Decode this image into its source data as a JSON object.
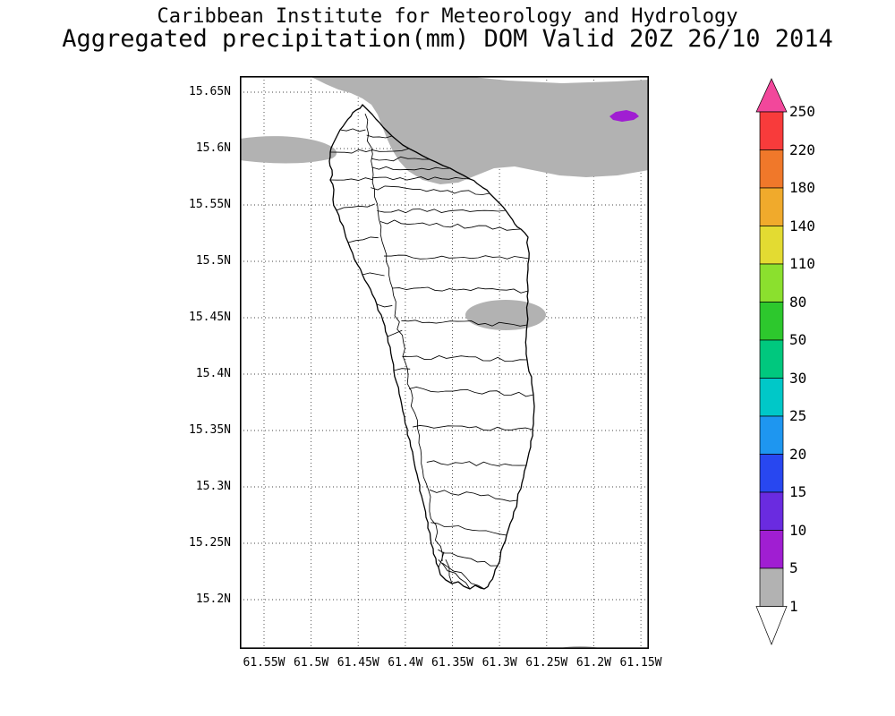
{
  "header": {
    "line1": "Caribbean Institute for Meteorology and Hydrology",
    "line2": "Aggregated precipitation(mm) DOM Valid 20Z 26/10 2014"
  },
  "axes": {
    "lat_labels": [
      "15.65N",
      "15.6N",
      "15.55N",
      "15.5N",
      "15.45N",
      "15.4N",
      "15.35N",
      "15.3N",
      "15.25N",
      "15.2N"
    ],
    "lon_labels": [
      "61.55W",
      "61.5W",
      "61.45W",
      "61.4W",
      "61.35W",
      "61.3W",
      "61.25W",
      "61.2W",
      "61.15W"
    ]
  },
  "colorbar": {
    "labels_top_to_bottom": [
      "250",
      "220",
      "180",
      "140",
      "110",
      "80",
      "50",
      "30",
      "25",
      "20",
      "15",
      "10",
      "5",
      "1"
    ],
    "segment_colors_top_to_bottom": [
      "#f83b3b",
      "#f0782a",
      "#f0aa2c",
      "#e3db32",
      "#8be02e",
      "#2dc82d",
      "#00c87e",
      "#00c8c8",
      "#1e96f0",
      "#2847f0",
      "#6a2be0",
      "#a01ed2",
      "#b2b2b2"
    ],
    "arrow_top_color": "#f2479b",
    "arrow_bottom_color": "#ffffff"
  },
  "map": {
    "shading_colors": {
      "rain_1_to_5mm": "#b2b2b2",
      "rain_5_to_10mm": "#a01ed2"
    }
  }
}
